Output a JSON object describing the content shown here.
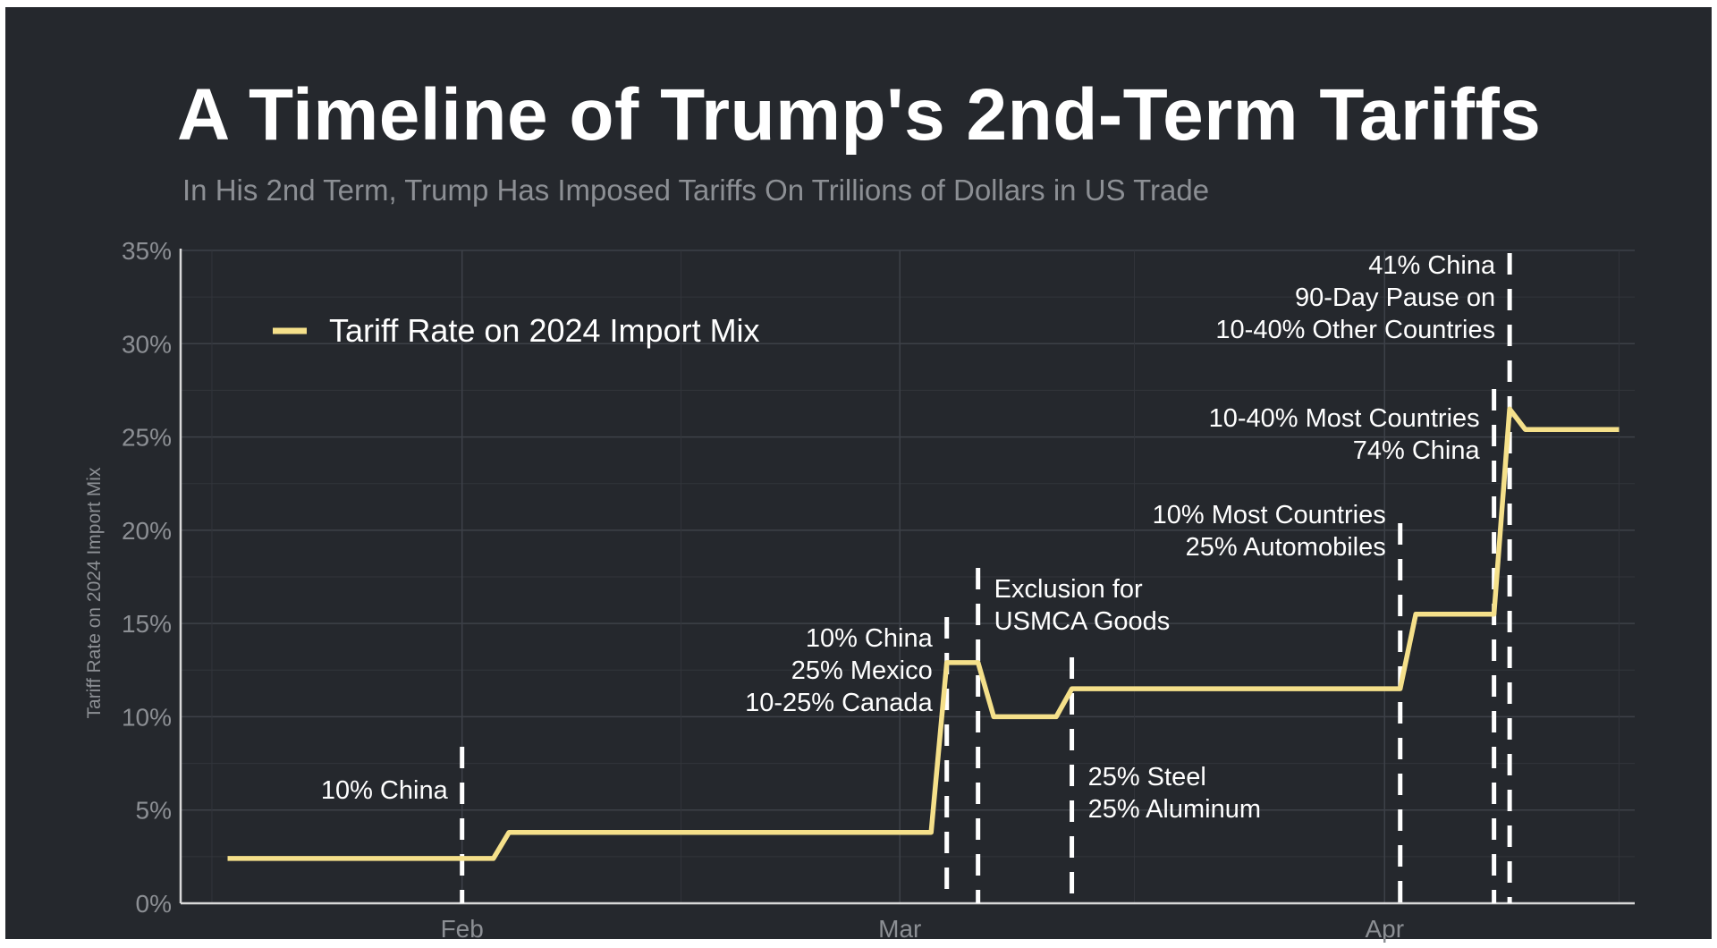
{
  "chart_data": {
    "type": "line",
    "title": "A Timeline of Trump's 2nd-Term Tariffs",
    "subtitle": "In His 2nd Term, Trump Has Imposed Tariffs On Trillions of Dollars in US Trade",
    "xlabel": "",
    "ylabel": "Tariff Rate on 2024 Import Mix",
    "ylim": [
      0,
      35
    ],
    "xlim": [
      "2025-01-14",
      "2025-04-17"
    ],
    "yticks": [
      0,
      5,
      10,
      15,
      20,
      25,
      30,
      35
    ],
    "ytick_labels": [
      "0%",
      "5%",
      "10%",
      "15%",
      "20%",
      "25%",
      "30%",
      "35%"
    ],
    "xticks": [
      {
        "date": "2025-02-01",
        "label": "Feb"
      },
      {
        "date": "2025-03-01",
        "label": "Mar"
      },
      {
        "date": "2025-04-01",
        "label": "Apr"
      }
    ],
    "grid": true,
    "legend": {
      "position": "top-left",
      "entries": [
        {
          "name": "Tariff Rate on 2024 Import Mix",
          "color": "#f5e08a"
        }
      ]
    },
    "series": [
      {
        "name": "Tariff Rate on 2024 Import Mix",
        "color": "#f5e08a",
        "points": [
          {
            "x": "2025-01-17",
            "y": 2.4
          },
          {
            "x": "2025-02-03",
            "y": 2.4
          },
          {
            "x": "2025-02-04",
            "y": 3.8
          },
          {
            "x": "2025-03-03",
            "y": 3.8
          },
          {
            "x": "2025-03-04",
            "y": 12.9
          },
          {
            "x": "2025-03-06",
            "y": 12.9
          },
          {
            "x": "2025-03-07",
            "y": 10.0
          },
          {
            "x": "2025-03-11",
            "y": 10.0
          },
          {
            "x": "2025-03-12",
            "y": 11.5
          },
          {
            "x": "2025-04-02",
            "y": 11.5
          },
          {
            "x": "2025-04-03",
            "y": 15.5
          },
          {
            "x": "2025-04-08",
            "y": 15.5
          },
          {
            "x": "2025-04-09",
            "y": 26.5
          },
          {
            "x": "2025-04-10",
            "y": 25.4
          },
          {
            "x": "2025-04-16",
            "y": 25.4
          }
        ]
      }
    ],
    "annotations": [
      {
        "date": "2025-02-01",
        "lines": [
          "10% China"
        ],
        "align": "left"
      },
      {
        "date": "2025-03-04",
        "lines": [
          "10% China",
          "25% Mexico",
          "10-25% Canada"
        ],
        "align": "left"
      },
      {
        "date": "2025-03-06",
        "lines": [
          "Exclusion for",
          "USMCA Goods"
        ],
        "align": "right"
      },
      {
        "date": "2025-03-12",
        "lines": [
          "25% Steel",
          "25% Aluminum"
        ],
        "align": "right"
      },
      {
        "date": "2025-04-02",
        "lines": [
          "10% Most Countries",
          "25% Automobiles"
        ],
        "align": "left"
      },
      {
        "date": "2025-04-08",
        "lines": [
          "10-40% Most Countries",
          "74% China"
        ],
        "align": "left"
      },
      {
        "date": "2025-04-09",
        "lines": [
          "41% China",
          "90-Day Pause on",
          "10-40% Other Countries"
        ],
        "align": "left"
      }
    ]
  }
}
